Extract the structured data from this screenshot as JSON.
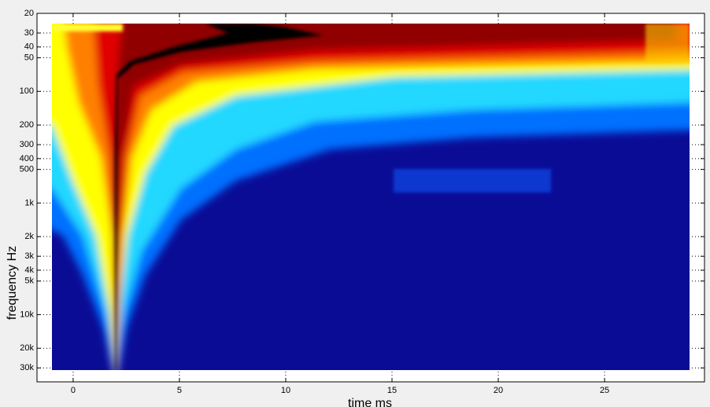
{
  "chart_data": {
    "type": "heatmap",
    "x_label": "time  ms",
    "y_label": "frequency  Hz",
    "xlim": [
      -1.7,
      29.7
    ],
    "xticks": [
      0,
      5,
      10,
      15,
      20,
      25
    ],
    "ylim": [
      20,
      40000
    ],
    "y_scale": "log",
    "y_inverted": true,
    "yticks": [
      20,
      30,
      40,
      50,
      100,
      200,
      300,
      400,
      500,
      {
        "value": 1000,
        "label": "1k"
      },
      {
        "value": 2000,
        "label": "2k"
      },
      {
        "value": 3000,
        "label": "3k"
      },
      {
        "value": 4000,
        "label": "4k"
      },
      {
        "value": 5000,
        "label": "5k"
      },
      {
        "value": 10000,
        "label": "10k"
      },
      {
        "value": 20000,
        "label": "20k"
      },
      {
        "value": 30000,
        "label": "30k"
      }
    ],
    "grid": true
  }
}
